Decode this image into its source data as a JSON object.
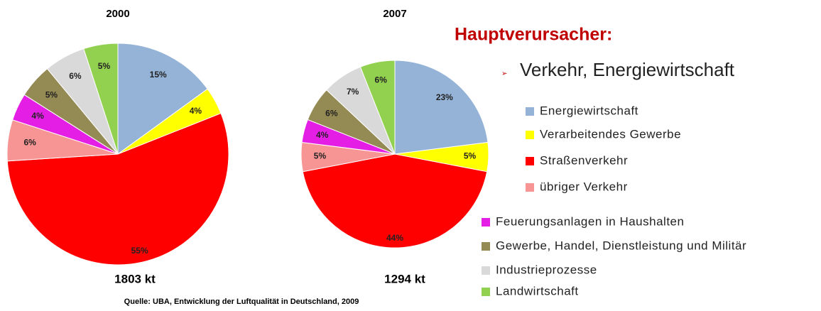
{
  "heading": "Hauptverursacher:",
  "bullet": "Verkehr, Energiewirtschaft",
  "source": "Quelle: UBA, Entwicklung der Luftqualität in Deutschland, 2009",
  "chart_data": [
    {
      "type": "pie",
      "title": "2000",
      "total": "1803 kt",
      "categories": [
        "Energiewirtschaft",
        "Verarbeitendes Gewerbe",
        "Straßenverkehr",
        "übriger Verkehr",
        "Feuerungsanlagen in Haushalten",
        "Gewerbe, Handel, Dienstleistung und Militär",
        "Industrieprozesse",
        "Landwirtschaft"
      ],
      "values": [
        15,
        4,
        55,
        6,
        4,
        5,
        6,
        5
      ],
      "value_labels": [
        "15%",
        "4%",
        "55%",
        "6%",
        "4%",
        "5%",
        "6%",
        "5%"
      ],
      "colors": [
        "#95b3d7",
        "#ffff00",
        "#ff0000",
        "#f79494",
        "#e51ee5",
        "#948a54",
        "#d9d9d9",
        "#92d050"
      ]
    },
    {
      "type": "pie",
      "title": "2007",
      "total": "1294 kt",
      "categories": [
        "Energiewirtschaft",
        "Verarbeitendes Gewerbe",
        "Straßenverkehr",
        "übriger Verkehr",
        "Feuerungsanlagen in Haushalten",
        "Gewerbe, Handel, Dienstleistung und Militär",
        "Industrieprozesse",
        "Landwirtschaft"
      ],
      "values": [
        23,
        5,
        44,
        5,
        4,
        6,
        7,
        6
      ],
      "value_labels": [
        "23%",
        "5%",
        "44%",
        "5%",
        "4%",
        "6%",
        "7%",
        "6%"
      ],
      "colors": [
        "#95b3d7",
        "#ffff00",
        "#ff0000",
        "#f79494",
        "#e51ee5",
        "#948a54",
        "#d9d9d9",
        "#92d050"
      ]
    }
  ]
}
